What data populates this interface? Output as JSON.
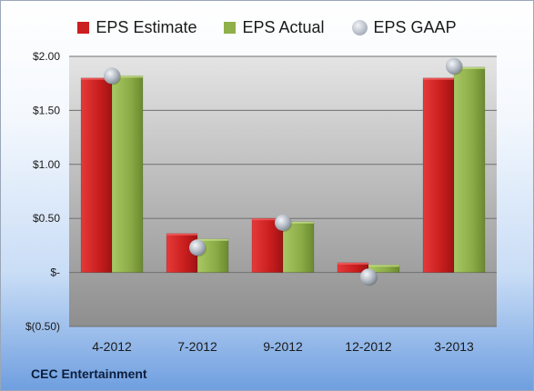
{
  "company": "CEC Entertainment",
  "chart_data": {
    "type": "bar",
    "categories": [
      "4-2012",
      "7-2012",
      "9-2012",
      "12-2012",
      "3-2013"
    ],
    "series": [
      {
        "name": "EPS Estimate",
        "values": [
          1.8,
          0.36,
          0.5,
          0.09,
          1.8
        ],
        "color": "#cc1f1f"
      },
      {
        "name": "EPS Actual",
        "values": [
          1.82,
          0.31,
          0.47,
          0.07,
          1.9
        ],
        "color": "#8fb04a"
      },
      {
        "name": "EPS GAAP",
        "values": [
          1.82,
          0.23,
          0.46,
          -0.04,
          1.91
        ],
        "color": "#b5bcc6",
        "marker": "sphere"
      }
    ],
    "yticks": [
      {
        "value": 2.0,
        "label": "$2.00"
      },
      {
        "value": 1.5,
        "label": "$1.50"
      },
      {
        "value": 1.0,
        "label": "$1.00"
      },
      {
        "value": 0.5,
        "label": "$0.50"
      },
      {
        "value": 0.0,
        "label": "$-"
      },
      {
        "value": -0.5,
        "label": "$(0.50)"
      }
    ],
    "ylim": [
      -0.5,
      2.0
    ],
    "grid": true,
    "legend_position": "top"
  }
}
